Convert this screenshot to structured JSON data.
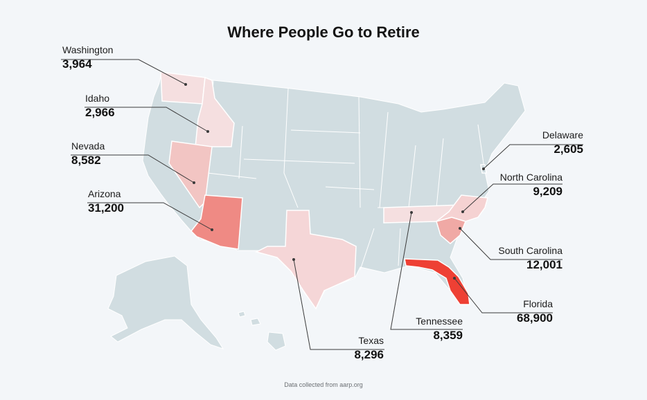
{
  "title": "Where People Go to Retire",
  "source": "Data collected from aarp.org",
  "colors": {
    "background": "#f3f6f9",
    "base_state": "#d1dde1",
    "state_border": "#ffffff",
    "scale_low": "#f5dfe0",
    "scale_mid": "#f2b1ad",
    "scale_high": "#ee4034",
    "leader_line": "#3a3a3a"
  },
  "states": [
    {
      "id": "washington",
      "name": "Washington",
      "value": 3964,
      "display": "3,964"
    },
    {
      "id": "idaho",
      "name": "Idaho",
      "value": 2966,
      "display": "2,966"
    },
    {
      "id": "nevada",
      "name": "Nevada",
      "value": 8582,
      "display": "8,582"
    },
    {
      "id": "arizona",
      "name": "Arizona",
      "value": 31200,
      "display": "31,200"
    },
    {
      "id": "texas",
      "name": "Texas",
      "value": 8296,
      "display": "8,296"
    },
    {
      "id": "tennessee",
      "name": "Tennessee",
      "value": 8359,
      "display": "8,359"
    },
    {
      "id": "florida",
      "name": "Florida",
      "value": 68900,
      "display": "68,900"
    },
    {
      "id": "south-carolina",
      "name": "South Carolina",
      "value": 12001,
      "display": "12,001"
    },
    {
      "id": "north-carolina",
      "name": "North Carolina",
      "value": 9209,
      "display": "9,209"
    },
    {
      "id": "delaware",
      "name": "Delaware",
      "value": 2605,
      "display": "2,605"
    }
  ]
}
